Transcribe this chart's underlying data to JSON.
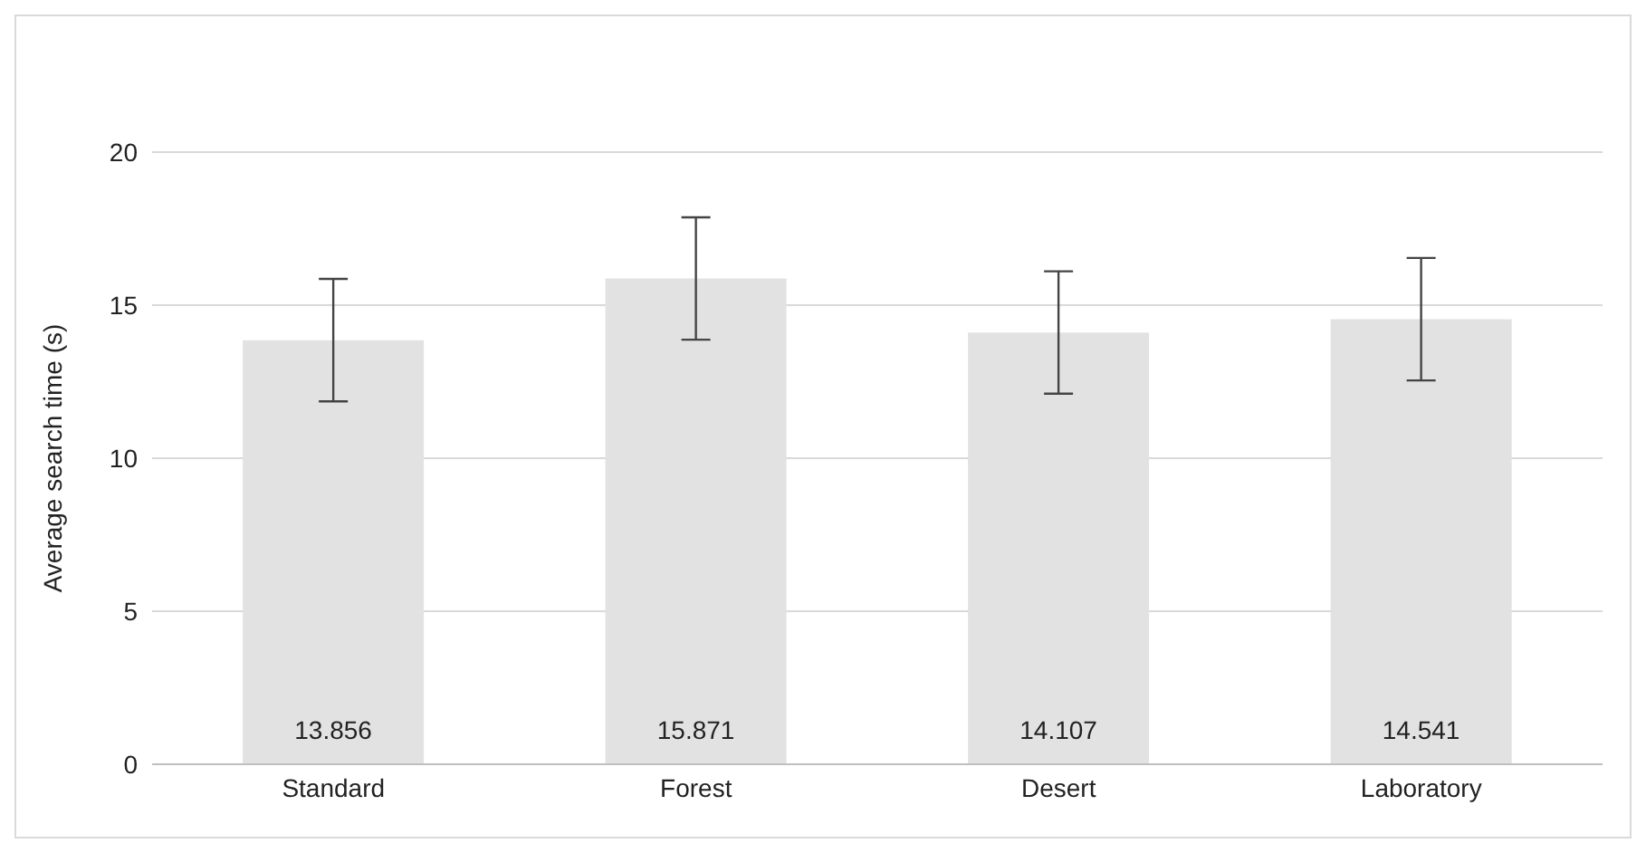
{
  "chart_data": {
    "type": "bar",
    "ylabel": "Average search time (s)",
    "categories": [
      "Standard",
      "Forest",
      "Desert",
      "Laboratory"
    ],
    "values": [
      13.856,
      15.871,
      14.107,
      14.541
    ],
    "errors": [
      2.0,
      2.0,
      2.0,
      2.0
    ],
    "color": "#e2e2e2",
    "ylim": [
      0,
      20
    ],
    "yticks": [
      0,
      5,
      10,
      15,
      20
    ],
    "grid": "y",
    "data_labels": true
  }
}
